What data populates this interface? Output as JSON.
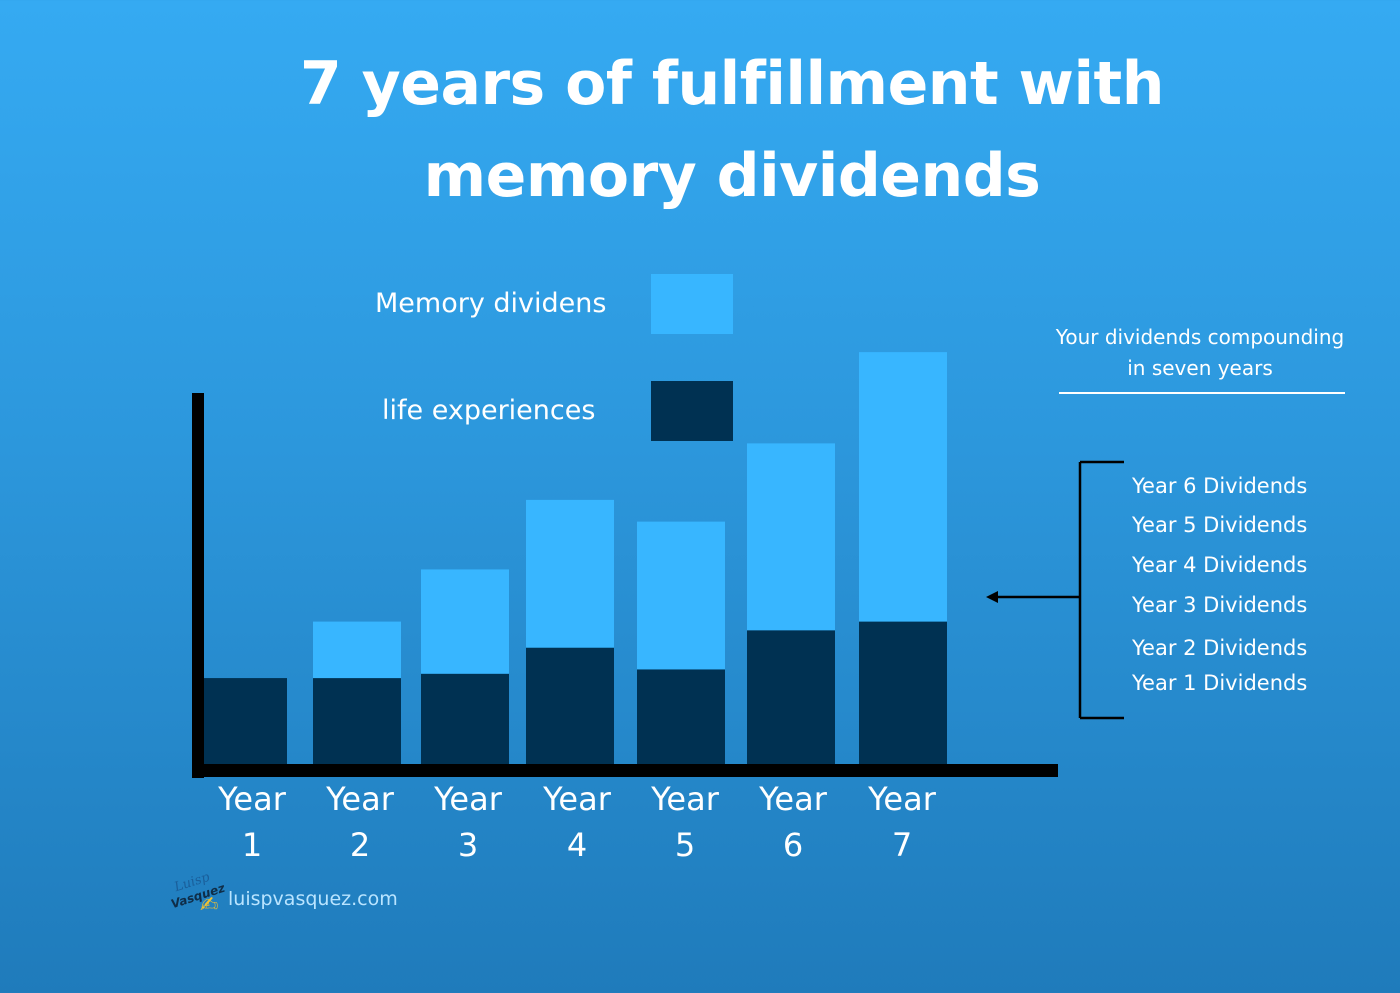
{
  "title_lines": [
    "7 years of fulfillment with",
    "memory dividends"
  ],
  "legend": [
    {
      "label": "Memory dividens",
      "color": "#38b6ff"
    },
    {
      "label": "life experiences",
      "color": "#003152"
    }
  ],
  "side_note": {
    "line1": "Your dividends compounding",
    "line2": "in seven years"
  },
  "dividends_list": [
    "Year 6 Dividends",
    "Year 5 Dividends",
    "Year 4 Dividends",
    "Year 3 Dividends",
    "Year 2 Dividends",
    "Year 1 Dividends"
  ],
  "brand": {
    "logo_line1": "Luisp",
    "logo_line2": "Vasquez",
    "logo_icon": "writing-hand-icon",
    "url": "luispvasquez.com"
  },
  "chart_data": {
    "type": "bar",
    "stacked": true,
    "categories": [
      [
        "Year",
        "1"
      ],
      [
        "Year",
        "2"
      ],
      [
        "Year",
        "3"
      ],
      [
        "Year",
        "4"
      ],
      [
        "Year",
        "5"
      ],
      [
        "Year",
        "6"
      ],
      [
        "Year",
        "7"
      ]
    ],
    "series": [
      {
        "name": "life experiences",
        "color": "#003152",
        "values": [
          1.0,
          1.0,
          1.05,
          1.35,
          1.1,
          1.55,
          1.65
        ]
      },
      {
        "name": "Memory dividens",
        "color": "#38b6ff",
        "values": [
          0,
          0.65,
          1.2,
          1.7,
          1.7,
          2.15,
          3.1
        ]
      }
    ],
    "ylim": [
      0,
      6.5
    ],
    "axis_color": "#000000",
    "grid": false
  }
}
